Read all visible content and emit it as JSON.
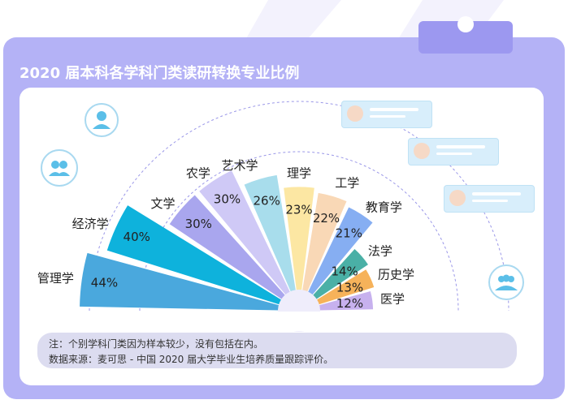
{
  "title": "2020 届本科各学科门类读研转换专业比例",
  "notes": {
    "line1": "注：个别学科门类因为样本较少，没有包括在内。",
    "line2": "数据来源：麦可思 - 中国 2020 届大学毕业生培养质量跟踪评价。"
  },
  "colors": {
    "frame": "#b4b2f6",
    "frame_dark": "#9c98f0",
    "panel": "#ffffff",
    "arc": "#9a97e8"
  },
  "chart_data": {
    "type": "bar",
    "layout": "radial-half",
    "categories": [
      "管理学",
      "经济学",
      "文学",
      "农学",
      "艺术学",
      "理学",
      "工学",
      "教育学",
      "法学",
      "历史学",
      "医学"
    ],
    "values": [
      44,
      40,
      30,
      30,
      26,
      23,
      22,
      21,
      14,
      13,
      12
    ],
    "value_labels": [
      "44%",
      "40%",
      "30%",
      "30%",
      "26%",
      "23%",
      "22%",
      "21%",
      "14%",
      "13%",
      "12%"
    ],
    "colors": [
      "#4aa8dd",
      "#0eb2dc",
      "#a9a6ee",
      "#cfc9f6",
      "#a8ddec",
      "#fce7a3",
      "#f9d8b6",
      "#86aef2",
      "#4ab0a6",
      "#f6b25a",
      "#c7b1ee"
    ],
    "unit": "%"
  },
  "icons": [
    "user-icon",
    "group-icon",
    "group-icon",
    "profile-card-icon"
  ]
}
